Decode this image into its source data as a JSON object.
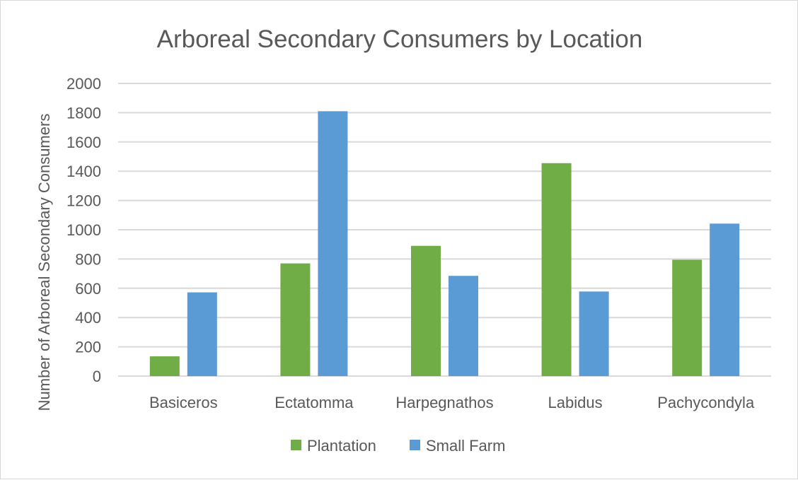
{
  "chart_data": {
    "type": "bar",
    "title": "Arboreal Secondary Consumers by Location",
    "xlabel": "",
    "ylabel": "Number of Arboreal Secondary Consumers",
    "categories": [
      "Basiceros",
      "Ectatomma",
      "Harpegnathos",
      "Labidus",
      "Pachycondyla"
    ],
    "series": [
      {
        "name": "Plantation",
        "color": "#70ad47",
        "values": [
          135,
          770,
          890,
          1455,
          795
        ]
      },
      {
        "name": "Small Farm",
        "color": "#5b9bd5",
        "values": [
          572,
          1810,
          685,
          578,
          1042
        ]
      }
    ],
    "ylim": [
      0,
      2000
    ],
    "yticks": [
      0,
      200,
      400,
      600,
      800,
      1000,
      1200,
      1400,
      1600,
      1800,
      2000
    ],
    "grid": true,
    "legend_position": "bottom"
  }
}
